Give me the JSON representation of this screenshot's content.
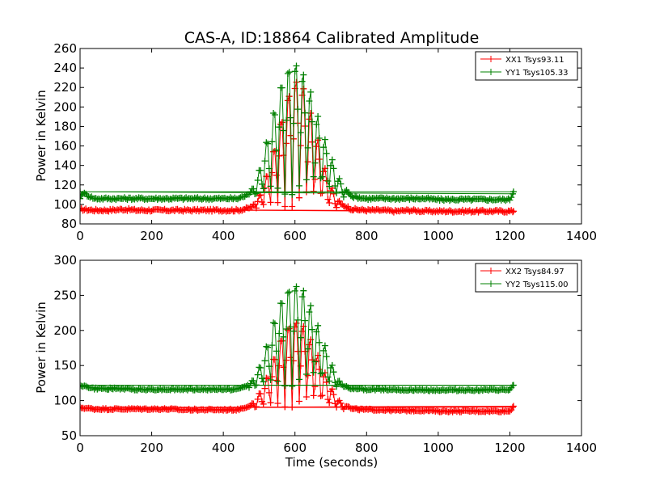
{
  "chart_data": [
    {
      "type": "scatter",
      "title": "CAS-A, ID:18864 Calibrated Amplitude",
      "xlabel": "",
      "ylabel": "Power in Kelvin",
      "xlim": [
        0,
        1400
      ],
      "ylim": [
        80,
        260
      ],
      "xticks": [
        0,
        200,
        400,
        600,
        800,
        1000,
        1200,
        1400
      ],
      "yticks": [
        80,
        100,
        120,
        140,
        160,
        180,
        200,
        220,
        240,
        260
      ],
      "legend_placement": "top-right",
      "grid": false,
      "series": [
        {
          "name": "XX1 Tsys93.11",
          "color": "#ff0000",
          "baseline": 94,
          "peak": 232,
          "x": [
            0,
            40,
            80,
            120,
            160,
            200,
            240,
            280,
            320,
            360,
            400,
            440,
            470,
            490,
            510,
            530,
            550,
            570,
            590,
            610,
            630,
            650,
            670,
            690,
            710,
            730,
            760,
            800,
            840,
            880,
            920,
            960,
            1000,
            1040,
            1080,
            1120,
            1160,
            1200,
            1210
          ],
          "y": [
            95,
            94,
            94,
            95,
            94,
            94,
            94,
            94,
            94,
            94,
            94,
            94,
            96,
            100,
            118,
            140,
            170,
            200,
            224,
            232,
            216,
            185,
            158,
            128,
            112,
            100,
            95,
            94,
            94,
            93,
            94,
            93,
            93,
            93,
            93,
            93,
            93,
            93,
            93
          ]
        },
        {
          "name": "YY1 Tsys105.33",
          "color": "#008000",
          "baseline": 106,
          "peak": 247,
          "x": [
            0,
            40,
            80,
            120,
            160,
            200,
            240,
            280,
            320,
            360,
            400,
            440,
            470,
            490,
            510,
            530,
            550,
            570,
            590,
            610,
            630,
            650,
            670,
            690,
            710,
            730,
            760,
            800,
            840,
            880,
            920,
            960,
            1000,
            1040,
            1080,
            1120,
            1160,
            1200,
            1210
          ],
          "y": [
            113,
            106,
            106,
            106,
            106,
            106,
            106,
            106,
            106,
            106,
            106,
            106,
            110,
            122,
            148,
            180,
            210,
            236,
            245,
            247,
            230,
            210,
            182,
            160,
            140,
            121,
            108,
            106,
            106,
            106,
            106,
            106,
            105,
            105,
            105,
            105,
            105,
            105,
            113
          ]
        }
      ]
    },
    {
      "type": "scatter",
      "title": "",
      "xlabel": "Time (seconds)",
      "ylabel": "Power in Kelvin",
      "xlim": [
        0,
        1400
      ],
      "ylim": [
        50,
        300
      ],
      "xticks": [
        0,
        200,
        400,
        600,
        800,
        1000,
        1200,
        1400
      ],
      "yticks": [
        50,
        100,
        150,
        200,
        250,
        300
      ],
      "legend_placement": "top-right",
      "grid": false,
      "series": [
        {
          "name": "XX2 Tsys84.97",
          "color": "#ff0000",
          "baseline": 87,
          "peak": 215,
          "x": [
            0,
            40,
            80,
            120,
            160,
            200,
            240,
            280,
            320,
            360,
            400,
            440,
            470,
            490,
            510,
            530,
            550,
            570,
            590,
            610,
            630,
            650,
            670,
            690,
            710,
            730,
            760,
            800,
            840,
            880,
            920,
            960,
            1000,
            1040,
            1080,
            1120,
            1160,
            1200,
            1210
          ],
          "y": [
            90,
            88,
            88,
            88,
            88,
            88,
            88,
            87,
            87,
            87,
            87,
            87,
            92,
            100,
            120,
            145,
            175,
            200,
            212,
            215,
            205,
            180,
            158,
            132,
            110,
            96,
            88,
            87,
            87,
            86,
            86,
            86,
            85,
            85,
            85,
            85,
            85,
            85,
            92
          ]
        },
        {
          "name": "YY2 Tsys115.00",
          "color": "#008000",
          "baseline": 116,
          "peak": 268,
          "x": [
            0,
            40,
            80,
            120,
            160,
            200,
            240,
            280,
            320,
            360,
            400,
            440,
            470,
            490,
            510,
            530,
            550,
            570,
            590,
            610,
            630,
            650,
            670,
            690,
            710,
            730,
            760,
            800,
            840,
            880,
            920,
            960,
            1000,
            1040,
            1080,
            1120,
            1160,
            1200,
            1210
          ],
          "y": [
            122,
            117,
            117,
            117,
            116,
            116,
            116,
            116,
            116,
            116,
            116,
            116,
            122,
            135,
            160,
            195,
            230,
            255,
            265,
            268,
            255,
            228,
            198,
            170,
            142,
            122,
            117,
            116,
            116,
            116,
            115,
            115,
            115,
            115,
            115,
            115,
            115,
            115,
            122
          ]
        }
      ]
    }
  ]
}
